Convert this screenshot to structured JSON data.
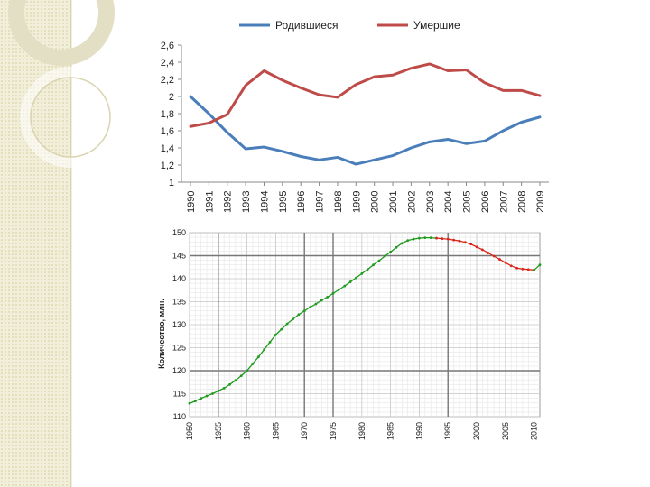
{
  "chart_data": [
    {
      "type": "line",
      "title": "",
      "xlabel": "",
      "ylabel": "",
      "ylim": [
        1,
        2.6
      ],
      "yticks": [
        "2,6",
        "2,4",
        "2,2",
        "2",
        "1,8",
        "1,6",
        "1,4",
        "1,2",
        "1"
      ],
      "ytick_values": [
        2.6,
        2.4,
        2.2,
        2.0,
        1.8,
        1.6,
        1.4,
        1.2,
        1.0
      ],
      "grid": false,
      "legend_position": "top",
      "categories": [
        "1990",
        "1991",
        "1992",
        "1993",
        "1994",
        "1995",
        "1996",
        "1997",
        "1998",
        "1999",
        "2000",
        "2001",
        "2002",
        "2003",
        "2004",
        "2005",
        "2006",
        "2007",
        "2008",
        "2009"
      ],
      "series": [
        {
          "name": "Родившиеся",
          "color": "#4a7ebb",
          "values": [
            2.0,
            1.8,
            1.58,
            1.39,
            1.41,
            1.36,
            1.3,
            1.26,
            1.29,
            1.21,
            1.26,
            1.31,
            1.4,
            1.47,
            1.5,
            1.45,
            1.48,
            1.6,
            1.7,
            1.76
          ]
        },
        {
          "name": "Умершие",
          "color": "#be4b48",
          "values": [
            1.65,
            1.69,
            1.79,
            2.13,
            2.3,
            2.19,
            2.1,
            2.02,
            1.99,
            2.14,
            2.23,
            2.25,
            2.33,
            2.38,
            2.3,
            2.31,
            2.16,
            2.07,
            2.07,
            2.01
          ]
        }
      ]
    },
    {
      "type": "line",
      "title": "",
      "xlabel": "",
      "ylabel": "Количество, млн.",
      "ylim": [
        110,
        150
      ],
      "yticks": [
        "150",
        "145",
        "140",
        "135",
        "130",
        "125",
        "120",
        "115",
        "110"
      ],
      "ytick_values": [
        150,
        145,
        140,
        135,
        130,
        125,
        120,
        115,
        110
      ],
      "xlim": [
        1950,
        2011
      ],
      "xticks": [
        "1950",
        "1955",
        "1960",
        "1965",
        "1970",
        "1975",
        "1980",
        "1985",
        "1990",
        "1995",
        "2000",
        "2005",
        "2010"
      ],
      "xtick_values": [
        1950,
        1955,
        1960,
        1965,
        1970,
        1975,
        1980,
        1985,
        1990,
        1995,
        2000,
        2005,
        2010
      ],
      "major_grid_x": [
        1955,
        1970,
        1975,
        1995
      ],
      "major_grid_y": [
        145,
        120
      ],
      "grid": true,
      "series": [
        {
          "name": "",
          "color": "#1e9b1e",
          "x": [
            1950,
            1951,
            1952,
            1953,
            1954,
            1955,
            1956,
            1957,
            1958,
            1959,
            1960,
            1961,
            1962,
            1963,
            1964,
            1965,
            1966,
            1967,
            1968,
            1969,
            1970,
            1971,
            1972,
            1973,
            1974,
            1975,
            1976,
            1977,
            1978,
            1979,
            1980,
            1981,
            1982,
            1983,
            1984,
            1985,
            1986,
            1987,
            1988,
            1989,
            1990,
            1991,
            1992,
            1993
          ],
          "values": [
            112.9,
            113.4,
            114.0,
            114.5,
            115.0,
            115.6,
            116.2,
            117.0,
            117.9,
            118.9,
            120.0,
            121.5,
            123.0,
            124.6,
            126.2,
            127.8,
            129.0,
            130.2,
            131.2,
            132.2,
            133.0,
            133.8,
            134.5,
            135.3,
            136.0,
            136.8,
            137.6,
            138.4,
            139.3,
            140.2,
            141.1,
            142.0,
            143.0,
            143.9,
            144.9,
            145.8,
            146.8,
            147.7,
            148.3,
            148.6,
            148.8,
            148.9,
            148.9,
            148.8
          ]
        },
        {
          "name": "",
          "color": "#d9261c",
          "x": [
            1993,
            1994,
            1995,
            1996,
            1997,
            1998,
            1999,
            2000,
            2001,
            2002,
            2003,
            2004,
            2005,
            2006,
            2007,
            2008,
            2009,
            2010
          ],
          "values": [
            148.8,
            148.7,
            148.6,
            148.4,
            148.2,
            147.9,
            147.5,
            146.9,
            146.3,
            145.6,
            144.9,
            144.2,
            143.5,
            142.8,
            142.3,
            142.1,
            142.0,
            141.9
          ]
        },
        {
          "name": "",
          "color": "#1e9b1e",
          "x": [
            2010,
            2011
          ],
          "values": [
            141.9,
            143.0
          ]
        }
      ]
    }
  ]
}
